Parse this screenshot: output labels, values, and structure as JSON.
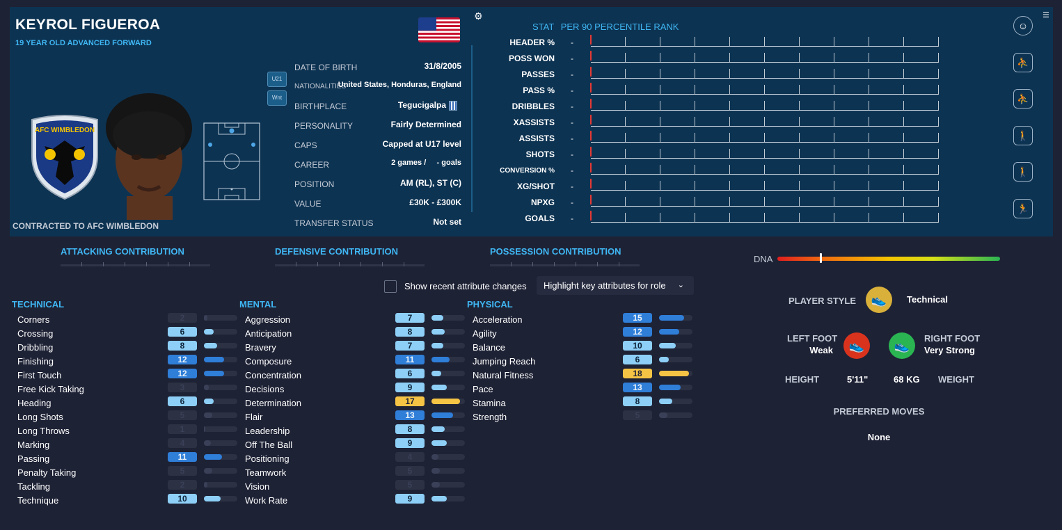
{
  "player": {
    "name": "KEYROL FIGUEROA",
    "subtitle": "19 YEAR OLD  ADVANCED FORWARD",
    "contracted": "CONTRACTED TO AFC WIMBLEDON",
    "club_badge_text": "AFC WIMBLEDON",
    "tags": [
      "U21",
      "Wnt"
    ]
  },
  "info": [
    {
      "label": "DATE OF BIRTH",
      "value": "31/8/2005"
    },
    {
      "label": "NATIONALITIES",
      "value": "United States, Honduras, England"
    },
    {
      "label": "BIRTHPLACE",
      "value": "Tegucigalpa"
    },
    {
      "label": "PERSONALITY",
      "value": "Fairly Determined"
    },
    {
      "label": "CAPS",
      "value": "Capped at U17 level"
    },
    {
      "label": "CAREER",
      "value": "2 games /     - goals"
    },
    {
      "label": "POSITION",
      "value": "AM (RL), ST (C)"
    },
    {
      "label": "VALUE",
      "value": "£30K - £300K"
    },
    {
      "label": "TRANSFER STATUS",
      "value": "Not set"
    }
  ],
  "stats": {
    "header_stat": "STAT",
    "header_rank": "PER 90 PERCENTILE RANK",
    "rows": [
      {
        "label": "HEADER %",
        "value": "-"
      },
      {
        "label": "POSS WON",
        "value": "-"
      },
      {
        "label": "PASSES",
        "value": "-"
      },
      {
        "label": "PASS %",
        "value": "-"
      },
      {
        "label": "DRIBBLES",
        "value": "-"
      },
      {
        "label": "XASSISTS",
        "value": "-"
      },
      {
        "label": "ASSISTS",
        "value": "-"
      },
      {
        "label": "SHOTS",
        "value": "-"
      },
      {
        "label": "CONVERSION %",
        "value": "-"
      },
      {
        "label": "XG/SHOT",
        "value": "-"
      },
      {
        "label": "NPXG",
        "value": "-"
      },
      {
        "label": "GOALS",
        "value": "-"
      }
    ]
  },
  "contributions": [
    "ATTACKING CONTRIBUTION",
    "DEFENSIVE CONTRIBUTION",
    "POSSESSION CONTRIBUTION"
  ],
  "toggle_label": "Show recent attribute changes",
  "highlight_label": "Highlight key attributes for role",
  "categories": {
    "technical": {
      "title": "TECHNICAL",
      "items": [
        {
          "name": "Corners",
          "value": "2"
        },
        {
          "name": "Crossing",
          "value": "6"
        },
        {
          "name": "Dribbling",
          "value": "8"
        },
        {
          "name": "Finishing",
          "value": "12"
        },
        {
          "name": "First Touch",
          "value": "12"
        },
        {
          "name": "Free Kick Taking",
          "value": "3"
        },
        {
          "name": "Heading",
          "value": "6"
        },
        {
          "name": "Long Shots",
          "value": "5"
        },
        {
          "name": "Long Throws",
          "value": "1"
        },
        {
          "name": "Marking",
          "value": "4"
        },
        {
          "name": "Passing",
          "value": "11"
        },
        {
          "name": "Penalty Taking",
          "value": "5"
        },
        {
          "name": "Tackling",
          "value": "2"
        },
        {
          "name": "Technique",
          "value": "10"
        }
      ]
    },
    "mental": {
      "title": "MENTAL",
      "items": [
        {
          "name": "Aggression",
          "value": "7"
        },
        {
          "name": "Anticipation",
          "value": "8"
        },
        {
          "name": "Bravery",
          "value": "7"
        },
        {
          "name": "Composure",
          "value": "11"
        },
        {
          "name": "Concentration",
          "value": "6"
        },
        {
          "name": "Decisions",
          "value": "9"
        },
        {
          "name": "Determination",
          "value": "17"
        },
        {
          "name": "Flair",
          "value": "13"
        },
        {
          "name": "Leadership",
          "value": "8"
        },
        {
          "name": "Off The Ball",
          "value": "9"
        },
        {
          "name": "Positioning",
          "value": "4"
        },
        {
          "name": "Teamwork",
          "value": "5"
        },
        {
          "name": "Vision",
          "value": "5"
        },
        {
          "name": "Work Rate",
          "value": "9"
        }
      ]
    },
    "physical": {
      "title": "PHYSICAL",
      "items": [
        {
          "name": "Acceleration",
          "value": "15"
        },
        {
          "name": "Agility",
          "value": "12"
        },
        {
          "name": "Balance",
          "value": "10"
        },
        {
          "name": "Jumping Reach",
          "value": "6"
        },
        {
          "name": "Natural Fitness",
          "value": "18"
        },
        {
          "name": "Pace",
          "value": "13"
        },
        {
          "name": "Stamina",
          "value": "8"
        },
        {
          "name": "Strength",
          "value": "5"
        }
      ]
    }
  },
  "profile": {
    "dna_label": "DNA",
    "dna_value": 0.19,
    "player_style_label": "PLAYER STYLE",
    "player_style": "Technical",
    "left_foot_label": "LEFT FOOT",
    "left_foot": "Weak",
    "right_foot_label": "RIGHT FOOT",
    "right_foot": "Very Strong",
    "height_label": "HEIGHT",
    "height": "5'11\"",
    "weight": "68 KG",
    "weight_label": "WEIGHT",
    "preferred_moves_label": "PREFERRED MOVES",
    "preferred_moves": "None"
  },
  "colors": {
    "header_bg": "#0d3352",
    "accent": "#3fb7f4",
    "box_light": "#8dcff6",
    "box_mid": "#2f7ed8",
    "box_gold": "#f6c445",
    "box_dim": "#2c3144",
    "weak_foot": "#d9331e",
    "strong_foot": "#2ab552"
  }
}
